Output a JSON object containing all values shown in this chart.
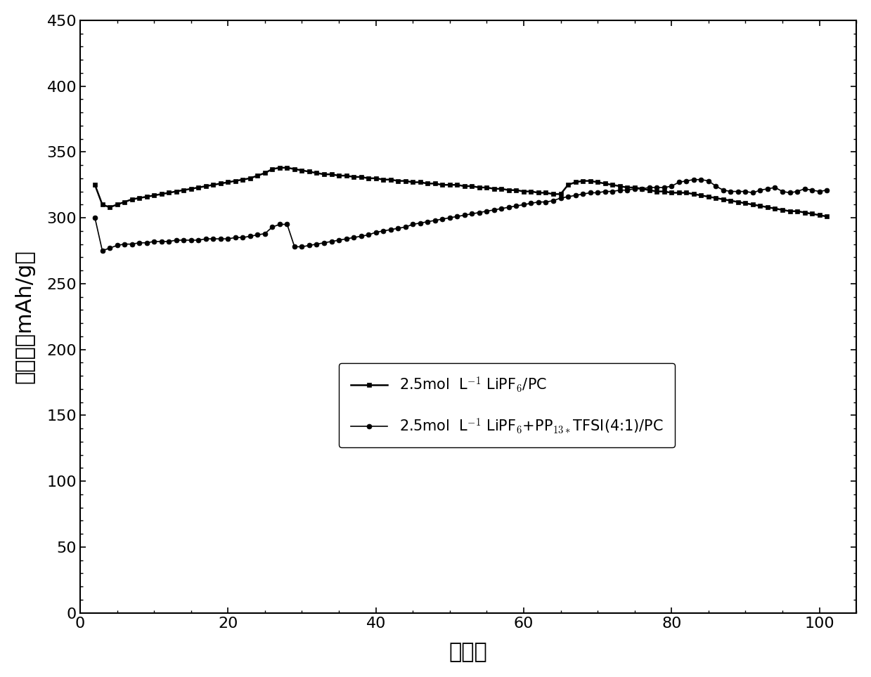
{
  "title": "",
  "xlabel": "循环数",
  "ylabel": "比容量（mAh/g）",
  "xlim": [
    0,
    105
  ],
  "ylim": [
    0,
    450
  ],
  "xticks": [
    0,
    20,
    40,
    60,
    80,
    100
  ],
  "yticks": [
    0,
    50,
    100,
    150,
    200,
    250,
    300,
    350,
    400,
    450
  ],
  "background_color": "#ffffff",
  "series1_label_math": "2.5mol  L$^{-1}$ LiPF$_6$/PC",
  "series2_label_math": "2.5mol  L$^{-1}$ LiPF$_6$+PP$_{13*}$TFSI(4:1)/PC",
  "series1_color": "#000000",
  "series2_color": "#000000",
  "series1_marker": "s",
  "series2_marker": "o",
  "series1_x": [
    2,
    3,
    4,
    5,
    6,
    7,
    8,
    9,
    10,
    11,
    12,
    13,
    14,
    15,
    16,
    17,
    18,
    19,
    20,
    21,
    22,
    23,
    24,
    25,
    26,
    27,
    28,
    29,
    30,
    31,
    32,
    33,
    34,
    35,
    36,
    37,
    38,
    39,
    40,
    41,
    42,
    43,
    44,
    45,
    46,
    47,
    48,
    49,
    50,
    51,
    52,
    53,
    54,
    55,
    56,
    57,
    58,
    59,
    60,
    61,
    62,
    63,
    64,
    65,
    66,
    67,
    68,
    69,
    70,
    71,
    72,
    73,
    74,
    75,
    76,
    77,
    78,
    79,
    80,
    81,
    82,
    83,
    84,
    85,
    86,
    87,
    88,
    89,
    90,
    91,
    92,
    93,
    94,
    95,
    96,
    97,
    98,
    99,
    100,
    101
  ],
  "series1_y": [
    325,
    310,
    308,
    310,
    312,
    314,
    315,
    316,
    317,
    318,
    319,
    320,
    321,
    322,
    323,
    324,
    325,
    326,
    327,
    328,
    329,
    330,
    332,
    334,
    337,
    338,
    338,
    337,
    336,
    335,
    334,
    333,
    333,
    332,
    332,
    331,
    331,
    330,
    330,
    329,
    329,
    328,
    328,
    327,
    327,
    326,
    326,
    325,
    325,
    325,
    324,
    324,
    323,
    323,
    322,
    322,
    321,
    321,
    320,
    320,
    319,
    319,
    318,
    318,
    325,
    327,
    328,
    328,
    327,
    326,
    325,
    324,
    323,
    323,
    322,
    321,
    320,
    320,
    319,
    319,
    319,
    318,
    317,
    316,
    315,
    314,
    313,
    312,
    311,
    310,
    309,
    308,
    307,
    306,
    305,
    305,
    304,
    303,
    302,
    301
  ],
  "series2_x": [
    2,
    3,
    4,
    5,
    6,
    7,
    8,
    9,
    10,
    11,
    12,
    13,
    14,
    15,
    16,
    17,
    18,
    19,
    20,
    21,
    22,
    23,
    24,
    25,
    26,
    27,
    28,
    29,
    30,
    31,
    32,
    33,
    34,
    35,
    36,
    37,
    38,
    39,
    40,
    41,
    42,
    43,
    44,
    45,
    46,
    47,
    48,
    49,
    50,
    51,
    52,
    53,
    54,
    55,
    56,
    57,
    58,
    59,
    60,
    61,
    62,
    63,
    64,
    65,
    66,
    67,
    68,
    69,
    70,
    71,
    72,
    73,
    74,
    75,
    76,
    77,
    78,
    79,
    80,
    81,
    82,
    83,
    84,
    85,
    86,
    87,
    88,
    89,
    90,
    91,
    92,
    93,
    94,
    95,
    96,
    97,
    98,
    99,
    100,
    101
  ],
  "series2_y": [
    300,
    275,
    277,
    279,
    280,
    280,
    281,
    281,
    282,
    282,
    282,
    283,
    283,
    283,
    283,
    284,
    284,
    284,
    284,
    285,
    285,
    286,
    287,
    288,
    293,
    295,
    295,
    278,
    278,
    279,
    280,
    281,
    282,
    283,
    284,
    285,
    286,
    287,
    289,
    290,
    291,
    292,
    293,
    295,
    296,
    297,
    298,
    299,
    300,
    301,
    302,
    303,
    304,
    305,
    306,
    307,
    308,
    309,
    310,
    311,
    312,
    312,
    313,
    315,
    316,
    317,
    318,
    319,
    319,
    320,
    320,
    321,
    321,
    322,
    322,
    323,
    323,
    323,
    324,
    327,
    328,
    329,
    329,
    328,
    324,
    321,
    320,
    320,
    320,
    319,
    321,
    322,
    323,
    320,
    319,
    320,
    322,
    321,
    320,
    321
  ]
}
